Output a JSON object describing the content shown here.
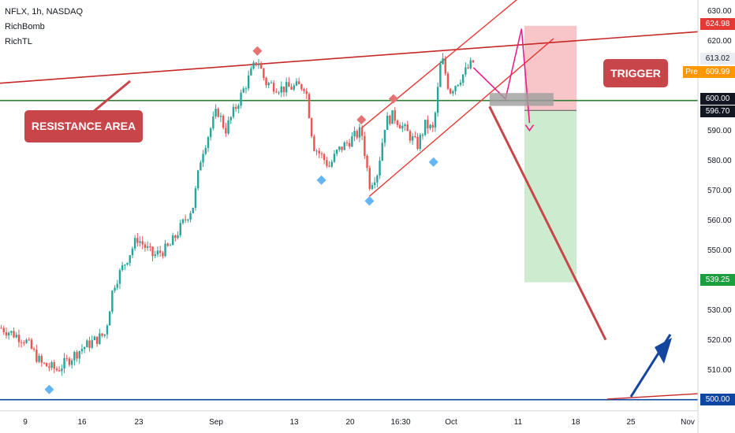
{
  "header": {
    "symbol": "NFLX, 1h, NASDAQ",
    "indicators": [
      "RichBomb",
      "RichTL"
    ]
  },
  "annotations": {
    "resistance_label": "RESISTANCE AREA",
    "trigger_label": "TRIGGER",
    "pre_label": "Pre"
  },
  "price_tags": {
    "target_stop": "624.98",
    "last": "613.02",
    "pre": "609.99",
    "resistance": "600.00",
    "trigger": "596.70",
    "target": "539.25",
    "support": "500.00"
  },
  "colors": {
    "up": "#26a69a",
    "down": "#ef5350",
    "resistance_line": "#2e7d32",
    "support_line": "#0d47a1",
    "channel": "#e53935",
    "stop_zone": "#f8c6c8",
    "target_zone": "#cdeccf",
    "callout": "#c8464a",
    "projection": "#e91e8c",
    "arrow": "#1446a0"
  },
  "chart_data": {
    "type": "candlestick",
    "symbol": "NFLX",
    "timeframe": "1h",
    "exchange": "NASDAQ",
    "ylim": [
      500,
      632
    ],
    "y_ticks": [
      510,
      520,
      530,
      540,
      550,
      560,
      570,
      580,
      590,
      600,
      610,
      620,
      630
    ],
    "x_ticks": [
      "9",
      "16",
      "23",
      "Sep",
      "13",
      "20",
      "16:30",
      "Oct",
      "11",
      "18",
      "25",
      "Nov"
    ],
    "close_path": [
      {
        "x": "Aug 06",
        "close": 524
      },
      {
        "x": "Aug 09",
        "close": 520
      },
      {
        "x": "Aug 11",
        "close": 512
      },
      {
        "x": "Aug 13",
        "close": 510
      },
      {
        "x": "Aug 16",
        "close": 517
      },
      {
        "x": "Aug 19",
        "close": 522
      },
      {
        "x": "Aug 20",
        "close": 538
      },
      {
        "x": "Aug 23",
        "close": 554
      },
      {
        "x": "Aug 25",
        "close": 548
      },
      {
        "x": "Aug 27",
        "close": 551
      },
      {
        "x": "Aug 30",
        "close": 565
      },
      {
        "x": "Aug 31",
        "close": 582
      },
      {
        "x": "Sep 02",
        "close": 597
      },
      {
        "x": "Sep 03",
        "close": 590
      },
      {
        "x": "Sep 07",
        "close": 614
      },
      {
        "x": "Sep 08",
        "close": 606
      },
      {
        "x": "Sep 10",
        "close": 604
      },
      {
        "x": "Sep 13",
        "close": 605
      },
      {
        "x": "Sep 14",
        "close": 585
      },
      {
        "x": "Sep 16",
        "close": 578
      },
      {
        "x": "Sep 17",
        "close": 583
      },
      {
        "x": "Sep 20",
        "close": 590
      },
      {
        "x": "Sep 21",
        "close": 572
      },
      {
        "x": "Sep 22",
        "close": 576
      },
      {
        "x": "Sep 23",
        "close": 593
      },
      {
        "x": "Sep 24",
        "close": 595
      },
      {
        "x": "Sep 27",
        "close": 585
      },
      {
        "x": "Sep 28",
        "close": 592
      },
      {
        "x": "Sep 29",
        "close": 590
      },
      {
        "x": "Sep 30",
        "close": 615
      },
      {
        "x": "Oct 01",
        "close": 603
      },
      {
        "x": "Oct 04",
        "close": 613
      }
    ],
    "swing_highs": [
      {
        "x": "Aug 05",
        "price": 526
      },
      {
        "x": "Sep 07",
        "price": 615
      },
      {
        "x": "Sep 20",
        "price": 592
      },
      {
        "x": "Sep 24",
        "price": 599
      }
    ],
    "swing_lows": [
      {
        "x": "Aug 12",
        "price": 505
      },
      {
        "x": "Sep 15",
        "price": 575
      },
      {
        "x": "Sep 21",
        "price": 568
      },
      {
        "x": "Sep 29",
        "price": 581
      }
    ],
    "levels": {
      "resistance": 600.0,
      "support": 500.0,
      "trigger": 596.7,
      "stop": 624.98,
      "target": 539.25
    }
  }
}
